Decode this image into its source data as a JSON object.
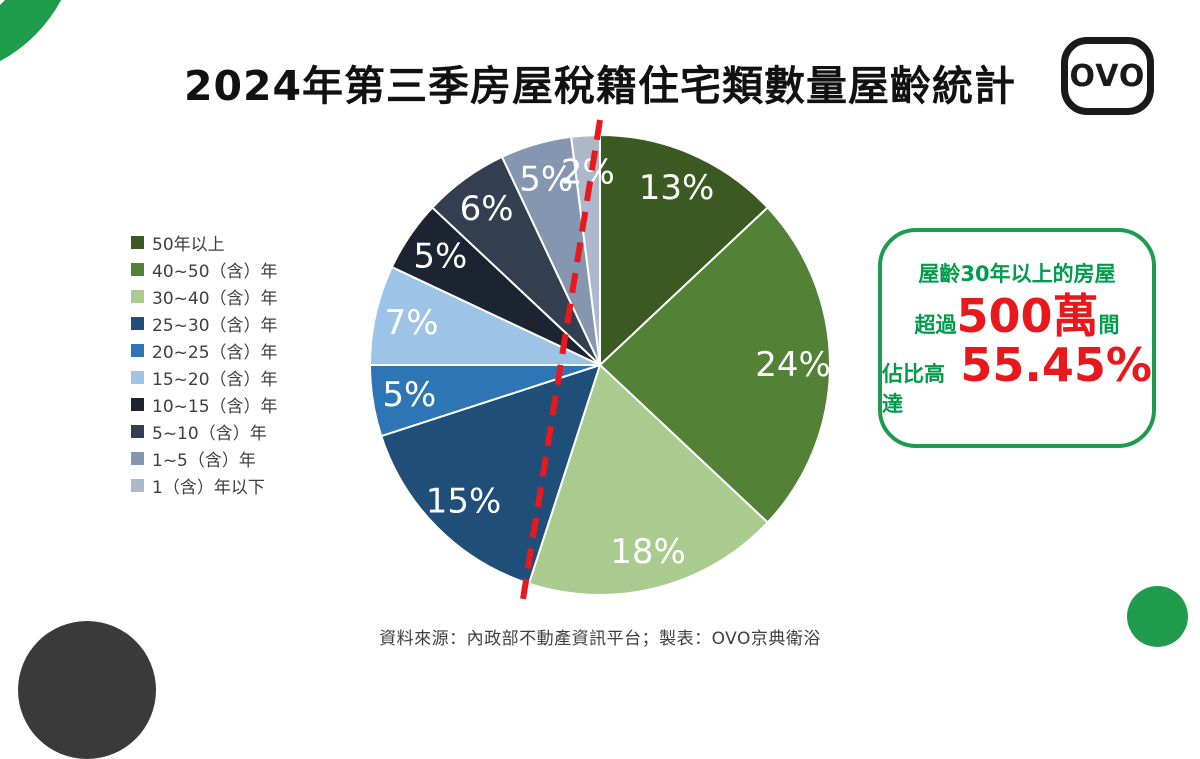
{
  "title": "2024年第三季房屋稅籍住宅類數量屋齡統計",
  "logo": {
    "text": "OVO"
  },
  "colors": {
    "brand_green": "#1E9B4D",
    "accent_red": "#E8191C",
    "text_green": "#009C4C",
    "dark_circle": "#3A3A3A",
    "slice_label_white": "#FFFFFF"
  },
  "chart_data": {
    "type": "pie",
    "title": "2024年第三季房屋稅籍住宅類數量屋齡統計",
    "categories": [
      "50年以上",
      "40~50（含）年",
      "30~40（含）年",
      "25~30（含）年",
      "20~25（含）年",
      "15~20（含）年",
      "10~15（含）年",
      "5~10（含）年",
      "1~5（含）年",
      "1（含）年以下"
    ],
    "values": [
      13,
      24,
      18,
      15,
      5,
      7,
      5,
      6,
      5,
      2
    ],
    "percent_labels": [
      "13%",
      "24%",
      "18%",
      "15%",
      "5%",
      "7%",
      "5%",
      "6%",
      "5%",
      "2%"
    ],
    "colors": [
      "#3A5A21",
      "#538135",
      "#A9CB8D",
      "#1F4E79",
      "#2E75B6",
      "#9DC3E6",
      "#1B2430",
      "#333F50",
      "#8496B0",
      "#ADB9CA"
    ],
    "start_angle_deg": 0,
    "direction": "clockwise",
    "legend_position": "left",
    "slice_border_color": "#FFFFFF",
    "divider": {
      "from_deg": 0,
      "to_deg": 198,
      "style": "dashed",
      "color": "#E8191C",
      "meaning": "separates slices of houses aged 30+ years (55%)"
    }
  },
  "callout": {
    "line1": "屋齡30年以上的房屋",
    "line2_prefix": "超過",
    "line2_value": "500萬",
    "line2_suffix": "間",
    "line3_prefix": "佔比高達",
    "line3_value": "55.45%"
  },
  "footer": "資料來源：內政部不動產資訊平台；製表：OVO京典衛浴"
}
